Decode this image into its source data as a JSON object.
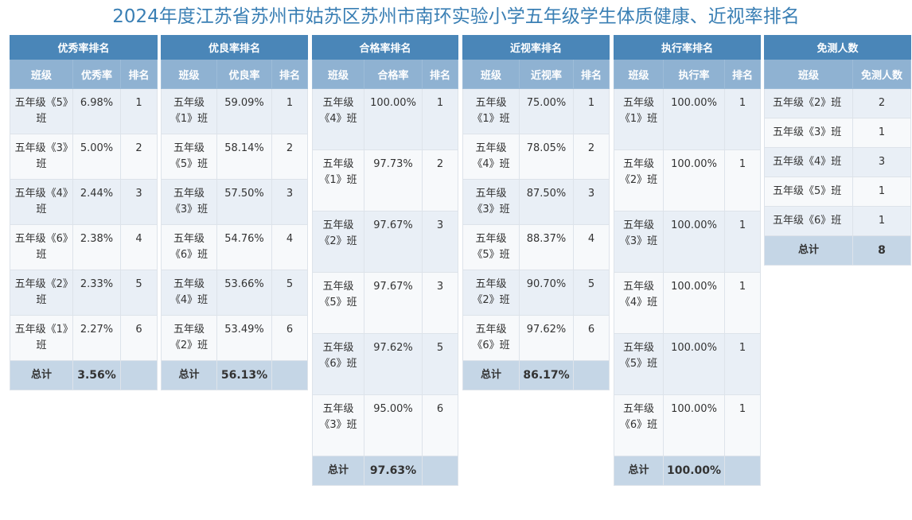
{
  "title": "2024年度江苏省苏州市姑苏区苏州市南环实验小学五年级学生体质健康、近视率排名",
  "tables": {
    "excellent": {
      "caption": "优秀率排名",
      "headers": [
        "班级",
        "优秀率",
        "排名"
      ],
      "rows": [
        {
          "cls": "五年级《5》班",
          "val": "6.98%",
          "rank": "1"
        },
        {
          "cls": "五年级《3》班",
          "val": "5.00%",
          "rank": "2"
        },
        {
          "cls": "五年级《4》班",
          "val": "2.44%",
          "rank": "3"
        },
        {
          "cls": "五年级《6》班",
          "val": "2.38%",
          "rank": "4"
        },
        {
          "cls": "五年级《2》班",
          "val": "2.33%",
          "rank": "5"
        },
        {
          "cls": "五年级《1》班",
          "val": "2.27%",
          "rank": "6"
        }
      ],
      "total_label": "总计",
      "total_value": "3.56%"
    },
    "good": {
      "caption": "优良率排名",
      "headers": [
        "班级",
        "优良率",
        "排名"
      ],
      "rows": [
        {
          "cls": "五年级《1》班",
          "val": "59.09%",
          "rank": "1"
        },
        {
          "cls": "五年级《5》班",
          "val": "58.14%",
          "rank": "2"
        },
        {
          "cls": "五年级《3》班",
          "val": "57.50%",
          "rank": "3"
        },
        {
          "cls": "五年级《6》班",
          "val": "54.76%",
          "rank": "4"
        },
        {
          "cls": "五年级《4》班",
          "val": "53.66%",
          "rank": "5"
        },
        {
          "cls": "五年级《2》班",
          "val": "53.49%",
          "rank": "6"
        }
      ],
      "total_label": "总计",
      "total_value": "56.13%"
    },
    "pass": {
      "caption": "合格率排名",
      "headers": [
        "班级",
        "合格率",
        "排名"
      ],
      "rows": [
        {
          "cls": "五年级《4》班",
          "val": "100.00%",
          "rank": "1"
        },
        {
          "cls": "五年级《1》班",
          "val": "97.73%",
          "rank": "2"
        },
        {
          "cls": "五年级《2》班",
          "val": "97.67%",
          "rank": "3"
        },
        {
          "cls": "五年级《5》班",
          "val": "97.67%",
          "rank": "3"
        },
        {
          "cls": "五年级《6》班",
          "val": "97.62%",
          "rank": "5"
        },
        {
          "cls": "五年级《3》班",
          "val": "95.00%",
          "rank": "6"
        }
      ],
      "total_label": "总计",
      "total_value": "97.63%"
    },
    "myopia": {
      "caption": "近视率排名",
      "headers": [
        "班级",
        "近视率",
        "排名"
      ],
      "rows": [
        {
          "cls": "五年级《1》班",
          "val": "75.00%",
          "rank": "1"
        },
        {
          "cls": "五年级《4》班",
          "val": "78.05%",
          "rank": "2"
        },
        {
          "cls": "五年级《3》班",
          "val": "87.50%",
          "rank": "3"
        },
        {
          "cls": "五年级《5》班",
          "val": "88.37%",
          "rank": "4"
        },
        {
          "cls": "五年级《2》班",
          "val": "90.70%",
          "rank": "5"
        },
        {
          "cls": "五年级《6》班",
          "val": "97.62%",
          "rank": "6"
        }
      ],
      "total_label": "总计",
      "total_value": "86.17%"
    },
    "execution": {
      "caption": "执行率排名",
      "headers": [
        "班级",
        "执行率",
        "排名"
      ],
      "rows": [
        {
          "cls": "五年级《1》班",
          "val": "100.00%",
          "rank": "1"
        },
        {
          "cls": "五年级《2》班",
          "val": "100.00%",
          "rank": "1"
        },
        {
          "cls": "五年级《3》班",
          "val": "100.00%",
          "rank": "1"
        },
        {
          "cls": "五年级《4》班",
          "val": "100.00%",
          "rank": "1"
        },
        {
          "cls": "五年级《5》班",
          "val": "100.00%",
          "rank": "1"
        },
        {
          "cls": "五年级《6》班",
          "val": "100.00%",
          "rank": "1"
        }
      ],
      "total_label": "总计",
      "total_value": "100.00%"
    },
    "exempt": {
      "caption": "免测人数",
      "headers": [
        "班级",
        "免测人数"
      ],
      "rows": [
        {
          "cls": "五年级《2》班",
          "val": "2"
        },
        {
          "cls": "五年级《3》班",
          "val": "1"
        },
        {
          "cls": "五年级《4》班",
          "val": "3"
        },
        {
          "cls": "五年级《5》班",
          "val": "1"
        },
        {
          "cls": "五年级《6》班",
          "val": "1"
        }
      ],
      "total_label": "总计",
      "total_value": "8"
    }
  }
}
